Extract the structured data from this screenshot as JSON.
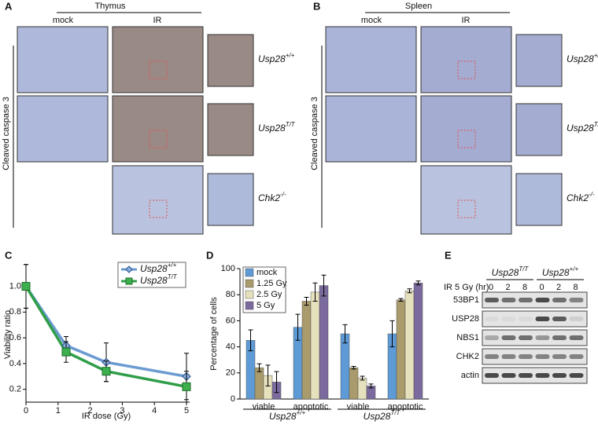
{
  "panels": {
    "A": {
      "label": "A",
      "tissue": "Thymus",
      "conditions": [
        "mock",
        "IR"
      ],
      "stain": "Cleaved caspase 3",
      "genotypes": [
        "Usp28+/+",
        "Usp28T/T",
        "Chk2-/-"
      ]
    },
    "B": {
      "label": "B",
      "tissue": "Spleen",
      "conditions": [
        "mock",
        "IR"
      ],
      "stain": "Cleaved caspase 3",
      "genotypes": [
        "Usp28+/+",
        "Usp28T/T",
        "Chk2-/-"
      ]
    },
    "E": {
      "label": "E",
      "groups": [
        "Usp28T/T",
        "Usp28+/+"
      ],
      "treatment": "IR 5 Gy (hr)",
      "timepoints": [
        "0",
        "2",
        "8",
        "0",
        "2",
        "8"
      ],
      "proteins": [
        "53BP1",
        "USP28",
        "NBS1",
        "CHK2",
        "actin"
      ]
    }
  },
  "chart_data": [
    {
      "type": "line",
      "panel_label": "C",
      "xlabel": "IR dose (Gy)",
      "ylabel": "Viability ratio",
      "x": [
        0,
        1.25,
        2.5,
        5
      ],
      "xlim": [
        0,
        5
      ],
      "xticks": [
        0,
        1,
        2,
        3,
        4,
        5
      ],
      "ylim": [
        0.1,
        1.15
      ],
      "yticks": [
        0.2,
        0.4,
        0.6,
        0.8,
        {
          "value": 1,
          "label": "1.0"
        }
      ],
      "series": [
        {
          "name": "Usp28+/+",
          "color": "#6c9bd2",
          "marker": "diamond",
          "values": [
            1.0,
            0.54,
            0.41,
            0.3
          ],
          "errors": [
            0.17,
            0.07,
            0.15,
            0.18
          ]
        },
        {
          "name": "Usp28T/T",
          "color": "#2f9e48",
          "marker": "square",
          "values": [
            1.0,
            0.49,
            0.34,
            0.22
          ],
          "errors": [
            0.17,
            0.08,
            0.08,
            0.12
          ]
        }
      ]
    },
    {
      "type": "bar",
      "panel_label": "D",
      "ylabel": "Percentage of cells",
      "categories": [
        "viable",
        "apoptotic",
        "viable",
        "apoptotic"
      ],
      "category_groups": [
        "Usp28+/+",
        "Usp28T/T"
      ],
      "ylim": [
        0,
        100
      ],
      "yticks": [
        0,
        20,
        40,
        60,
        80,
        100
      ],
      "series": [
        {
          "name": "mock",
          "color": "#5d9ad6",
          "values": [
            45,
            55,
            50,
            50
          ],
          "errors": [
            8,
            10,
            7,
            10
          ]
        },
        {
          "name": "1.25 Gy",
          "color": "#a99b6b",
          "values": [
            24,
            75,
            24,
            76
          ],
          "errors": [
            3,
            3,
            1,
            1
          ]
        },
        {
          "name": "2.5 Gy",
          "color": "#e6e1bd",
          "values": [
            18,
            82,
            16,
            83
          ],
          "errors": [
            8,
            7,
            1.5,
            1.5
          ]
        },
        {
          "name": "5 Gy",
          "color": "#7b6a9d",
          "values": [
            13,
            87,
            10,
            89
          ],
          "errors": [
            8,
            8,
            1.5,
            1.5
          ]
        }
      ]
    }
  ]
}
